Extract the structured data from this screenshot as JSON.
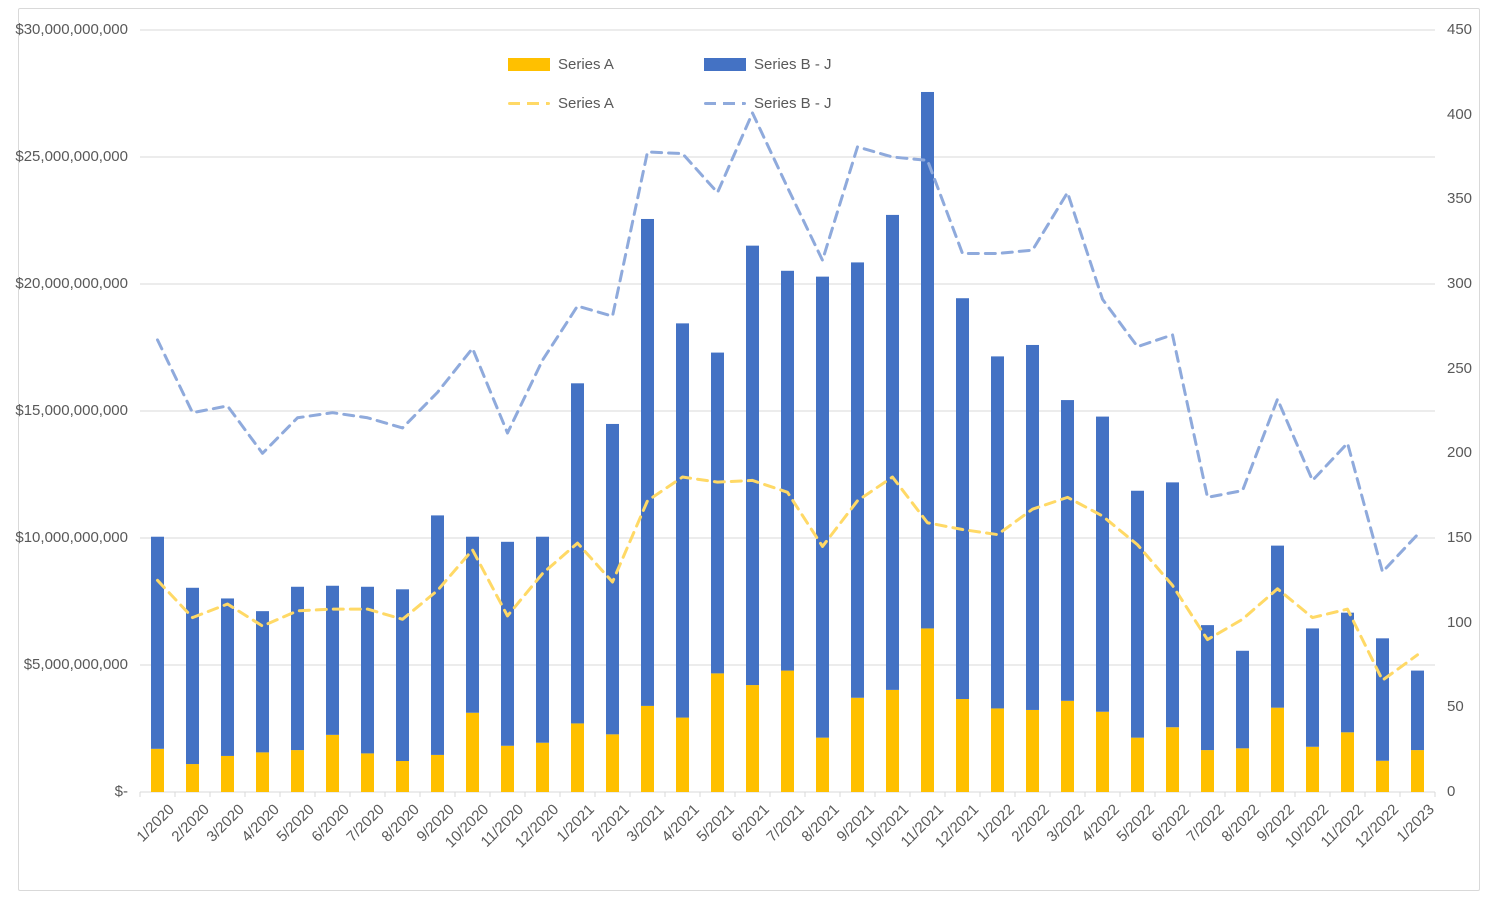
{
  "chart": {
    "legend": [
      {
        "label": "Series A",
        "type": "bar",
        "color": "#FFC000"
      },
      {
        "label": "Series B - J",
        "type": "bar",
        "color": "#4472C4"
      },
      {
        "label": "Series A",
        "type": "line",
        "color": "#FFD966"
      },
      {
        "label": "Series B - J",
        "type": "line",
        "color": "#8FAADC"
      }
    ],
    "colors": {
      "bar_series_a": "#FFC000",
      "bar_series_b_j": "#4472C4",
      "line_series_a": "#FFD966",
      "line_series_b_j": "#8FAADC",
      "gridline": "#D9D9D9",
      "axis_text": "#595959",
      "border": "#D9D9D9"
    }
  },
  "chart_data": {
    "type": "combo",
    "title": "",
    "grid": true,
    "legend_position": "top-center",
    "categories": [
      "1/2020",
      "2/2020",
      "3/2020",
      "4/2020",
      "5/2020",
      "6/2020",
      "7/2020",
      "8/2020",
      "9/2020",
      "10/2020",
      "11/2020",
      "12/2020",
      "1/2021",
      "2/2021",
      "3/2021",
      "4/2021",
      "5/2021",
      "6/2021",
      "7/2021",
      "8/2021",
      "9/2021",
      "10/2021",
      "11/2021",
      "12/2021",
      "1/2022",
      "2/2022",
      "3/2022",
      "4/2022",
      "5/2022",
      "6/2022",
      "7/2022",
      "8/2022",
      "9/2022",
      "10/2022",
      "11/2022",
      "12/2022",
      "1/2023"
    ],
    "series": [
      {
        "name": "Series A",
        "type": "bar",
        "stacked": true,
        "axis": "left",
        "color": "#FFC000",
        "values": [
          1700000000,
          1100000000,
          1420000000,
          1560000000,
          1650000000,
          2250000000,
          1520000000,
          1220000000,
          1460000000,
          3120000000,
          1820000000,
          1940000000,
          2700000000,
          2270000000,
          3390000000,
          2930000000,
          4670000000,
          4210000000,
          4780000000,
          2140000000,
          3710000000,
          4020000000,
          6440000000,
          3660000000,
          3290000000,
          3230000000,
          3590000000,
          3160000000,
          2140000000,
          2550000000,
          1650000000,
          1720000000,
          3320000000,
          1780000000,
          2350000000,
          1230000000,
          1650000000
        ]
      },
      {
        "name": "Series B - J",
        "type": "bar",
        "stacked": true,
        "axis": "left",
        "color": "#4472C4",
        "values": [
          8350000000,
          6940000000,
          6200000000,
          5560000000,
          6430000000,
          5870000000,
          6560000000,
          6760000000,
          9430000000,
          6930000000,
          8030000000,
          8110000000,
          13390000000,
          12220000000,
          19170000000,
          15520000000,
          12630000000,
          17300000000,
          15740000000,
          18150000000,
          17140000000,
          18700000000,
          21120000000,
          15780000000,
          13860000000,
          14370000000,
          11840000000,
          11620000000,
          9720000000,
          9640000000,
          4920000000,
          3840000000,
          6380000000,
          4660000000,
          4710000000,
          4820000000,
          3130000000
        ]
      },
      {
        "name": "Series A",
        "type": "line",
        "dashed": true,
        "axis": "right",
        "color": "#FFD966",
        "values": [
          125,
          103,
          111,
          98,
          107,
          108,
          108,
          102,
          119,
          143,
          104,
          129,
          147,
          124,
          172,
          186,
          183,
          184,
          177,
          145,
          172,
          186,
          159,
          155,
          152,
          167,
          174,
          163,
          146,
          122,
          90,
          102,
          120,
          103,
          108,
          66,
          81
        ]
      },
      {
        "name": "Series B - J",
        "type": "line",
        "dashed": true,
        "axis": "right",
        "color": "#8FAADC",
        "values": [
          267,
          224,
          228,
          200,
          221,
          224,
          221,
          215,
          236,
          262,
          212,
          255,
          287,
          281,
          378,
          377,
          354,
          401,
          357,
          314,
          381,
          375,
          373,
          318,
          318,
          320,
          354,
          291,
          263,
          270,
          174,
          178,
          232,
          184,
          206,
          130,
          152
        ]
      }
    ],
    "left_axis": {
      "min": 0,
      "max": 30000000000,
      "step": 5000000000,
      "tick_labels": [
        "$-",
        "$5,000,000,000",
        "$10,000,000,000",
        "$15,000,000,000",
        "$20,000,000,000",
        "$25,000,000,000",
        "$30,000,000,000"
      ]
    },
    "right_axis": {
      "min": 0,
      "max": 450,
      "step": 50,
      "tick_labels": [
        "0",
        "50",
        "100",
        "150",
        "200",
        "250",
        "300",
        "350",
        "400",
        "450"
      ]
    }
  }
}
